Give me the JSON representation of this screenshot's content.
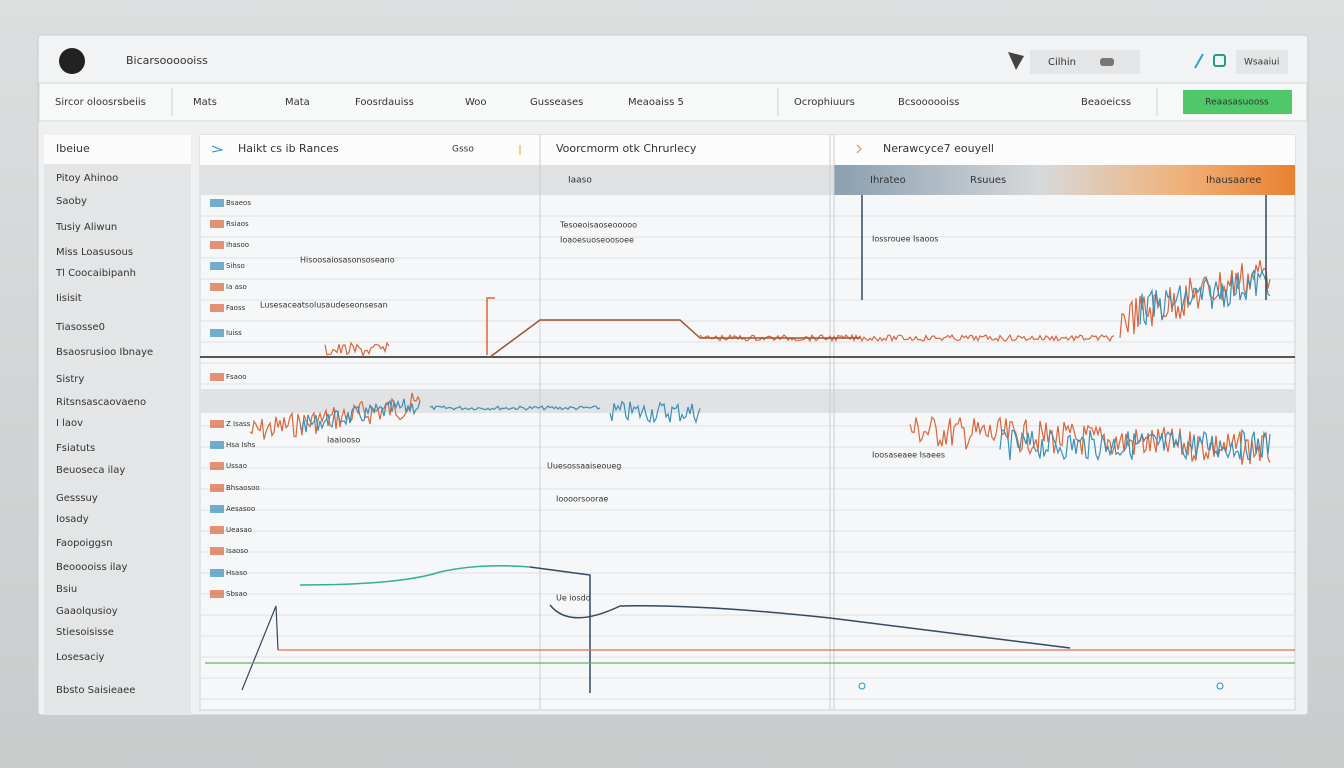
{
  "header": {
    "title": "Bicarsoooooiss",
    "search": "Cilhin",
    "badge": "Wsaaiui"
  },
  "nav": {
    "tabs": [
      "Sircor oloosrsbeiis",
      "Mats",
      "Mata",
      "Foosrdauiss",
      "Woo",
      "Gusseases",
      "Meaoaiss 5",
      "Ocrophiuurs",
      "Bcsoooooiss",
      "Beaoeicss"
    ],
    "button": "Reaasasuooss"
  },
  "sidebar": {
    "heading": "Ibeiue",
    "items": [
      "Pitoy Ahinoo",
      "Saoby",
      "Tusiy Aliwun",
      "Miss Loasusous",
      "Tl Coocaibipanh",
      "Iisisit",
      "Tiasosse0",
      "Bsaosrusioo Ibnaye",
      "Sistry",
      "Ritsnsascaovaeno",
      "I laov",
      "Fsiatuts",
      "Beuoseca ilay",
      "Gesssuy",
      "Iosady",
      "Faopoiggsn",
      "Beooooiss ilay",
      "Bsiu",
      "Gaaolqusioy",
      "Stiesoisisse",
      "Losesaciy",
      "Bbsto Saisieaee"
    ]
  },
  "panels": [
    {
      "title": "Haikt cs ib Rances",
      "sub": "Gsso"
    },
    {
      "title": "Voorcmorm otk Chrurlecy",
      "sub": "Iaaso"
    },
    {
      "title": "Nerawcyce7 eouyell",
      "sub": [
        "Ihrateo",
        "Rsuues",
        "Ihausaaree"
      ]
    }
  ],
  "row_labels": [
    "Bsaeos",
    "Rsiaos",
    "Ihasoo",
    "Sihso",
    "Ia aso",
    "Faoss",
    "Iuiss",
    "Fsaoo",
    "Z Isass",
    "Hsa Ishs",
    "Ussao",
    "Bhsaosoo",
    "Aesasoo",
    "Ueasao",
    "Isaoso",
    "Hsaso",
    "Sbsao"
  ],
  "annotations": [
    "Lusesaceatsolusaudeseonsesan",
    "Hisoosaiosasonsoseano",
    "Tesoeoisaoseooooo",
    "Ioaoesuoseoosoee",
    "Iaaiooso",
    "Uuesossaaiseoueg",
    "Ioosaseaee Isaees",
    "Iossrouee Isaoos",
    "Ue iosdo",
    "Ioooorsoorae"
  ]
}
